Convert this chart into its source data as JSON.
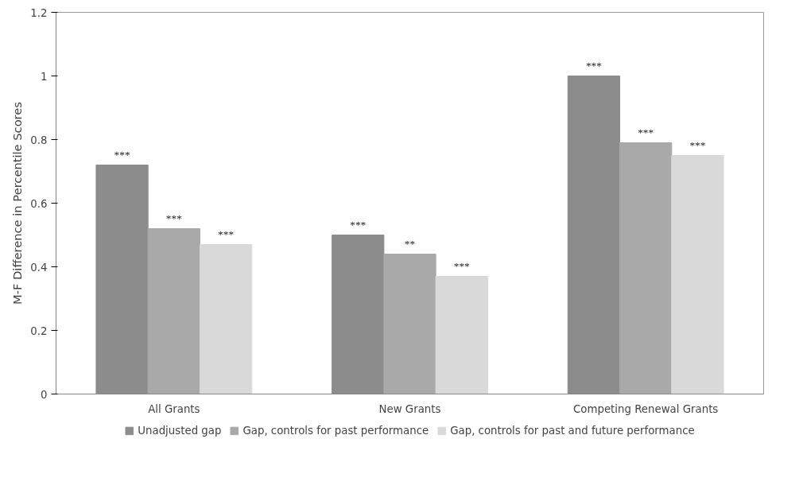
{
  "chart_data": {
    "type": "bar",
    "ylabel": "M-F Difference in Percentile Scores",
    "categories": [
      "All Grants",
      "New Grants",
      "Competing Renewal Grants"
    ],
    "series": [
      {
        "name": "Unadjusted gap",
        "color": "#8c8c8c",
        "values": [
          0.72,
          0.5,
          1.0
        ],
        "value_labels": [
          "***",
          "***",
          "***"
        ]
      },
      {
        "name": "Gap, controls for past performance",
        "color": "#a9a9a9",
        "values": [
          0.52,
          0.44,
          0.79
        ],
        "value_labels": [
          "***",
          "**",
          "***"
        ]
      },
      {
        "name": "Gap, controls for past and future performance",
        "color": "#d9d9d9",
        "values": [
          0.47,
          0.37,
          0.75
        ],
        "value_labels": [
          "***",
          "***",
          "***"
        ]
      }
    ],
    "ylim": [
      0,
      1.2
    ],
    "yticks": [
      0,
      0.2,
      0.4,
      0.6,
      0.8,
      1,
      1.2
    ],
    "grid": false,
    "legend": "bottom"
  }
}
